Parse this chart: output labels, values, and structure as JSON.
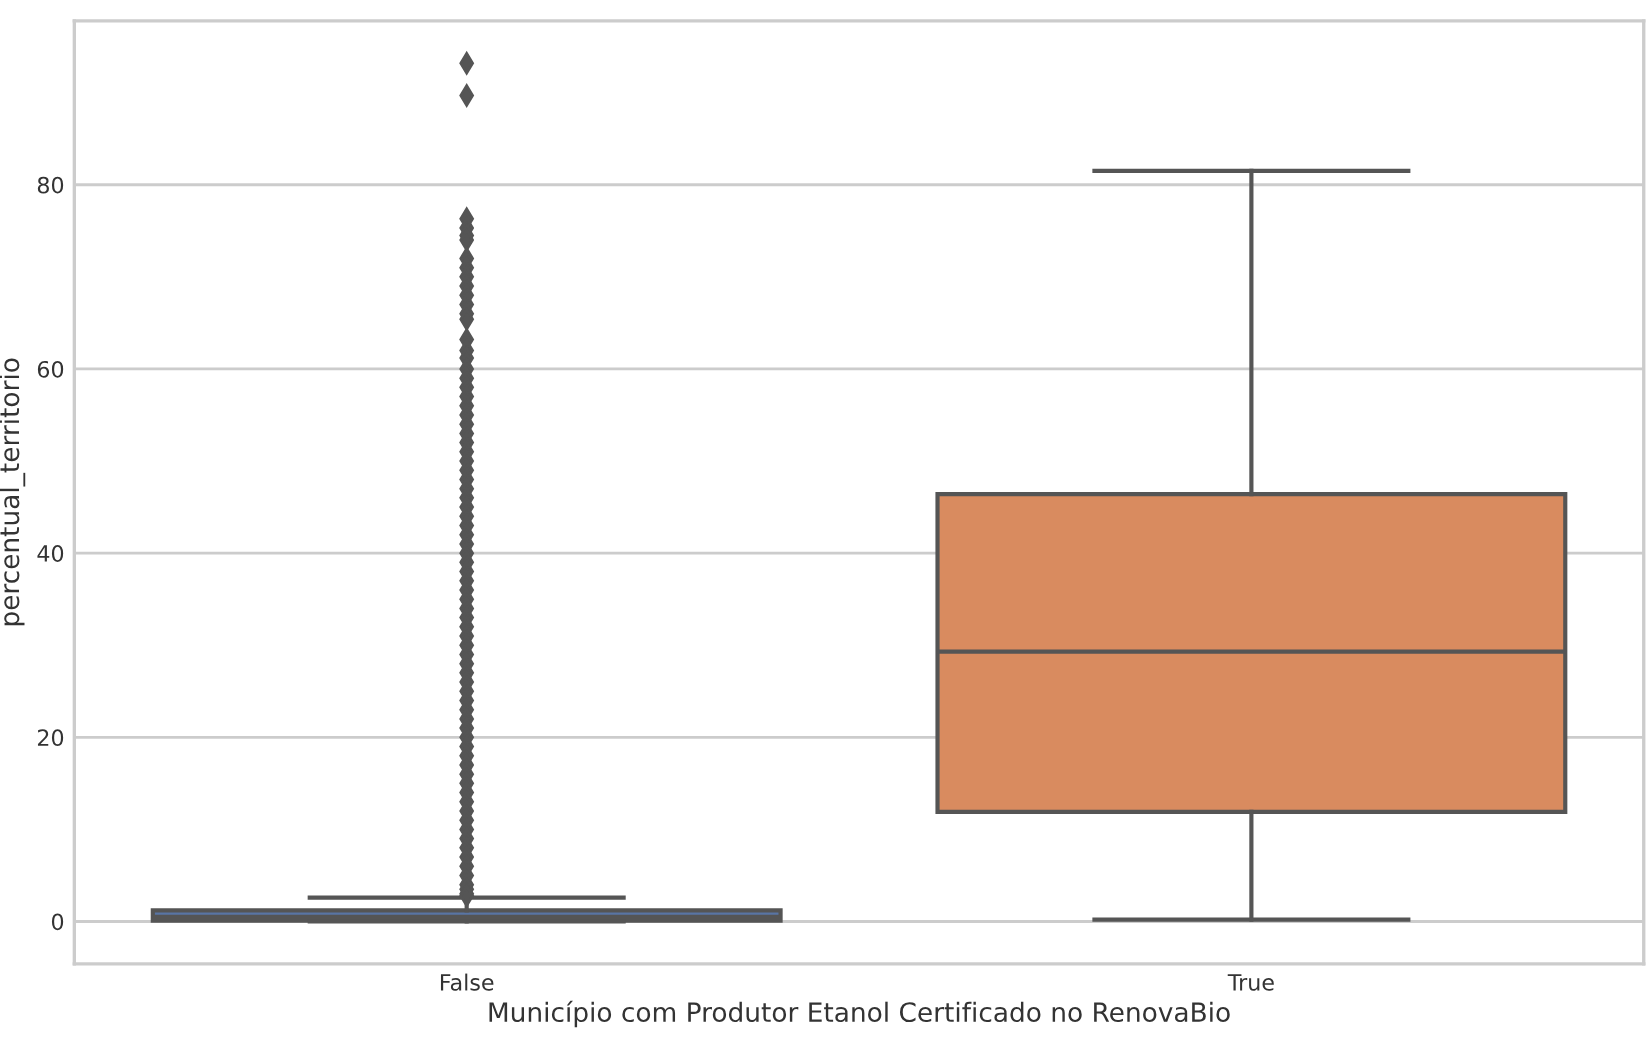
{
  "chart_data": {
    "type": "box",
    "xlabel": "Município com Produtor Etanol Certificado no RenovaBio",
    "ylabel": "percentual_territorio",
    "categories": [
      "False",
      "True"
    ],
    "colors": [
      "#5975a4",
      "#d98b5f"
    ],
    "boxes": [
      {
        "low": 0,
        "q1": 0.1,
        "median": 0.5,
        "q3": 1.2,
        "high": 2.6,
        "outliers": [
          93.2,
          89.7,
          76.3,
          75.3,
          74.5,
          74.0,
          72.0,
          71.0,
          70.0,
          69.0,
          68.0,
          67.0,
          66.0,
          65.4,
          63.2,
          62.0,
          61.2,
          60.0,
          59.0,
          58.0,
          57.0,
          56.0,
          55.0,
          54.0,
          53.0,
          52.0,
          51.0,
          50.0,
          49.0,
          48.0,
          47.0,
          46.0,
          45.0,
          44.0,
          43.0,
          42.0,
          41.0,
          40.0,
          39.0,
          38.0,
          37.0,
          36.0,
          35.0,
          34.0,
          33.0,
          32.0,
          31.0,
          30.0,
          29.0,
          28.0,
          27.0,
          26.0,
          25.0,
          24.0,
          23.0,
          22.0,
          21.0,
          20.0,
          19.0,
          18.0,
          17.0,
          16.0,
          15.0,
          14.0,
          13.0,
          12.0,
          11.0,
          10.0,
          9.0,
          8.0,
          7.0,
          6.0,
          5.0,
          4.0,
          3.5,
          3.0,
          2.8
        ]
      },
      {
        "low": 0.2,
        "q1": 11.9,
        "median": 29.3,
        "q3": 46.4,
        "high": 81.5
      }
    ],
    "ylim": [
      -4.6,
      97.8
    ],
    "yticks": [
      0,
      20,
      40,
      60,
      80
    ],
    "grid": "y",
    "marker": "diamond"
  }
}
